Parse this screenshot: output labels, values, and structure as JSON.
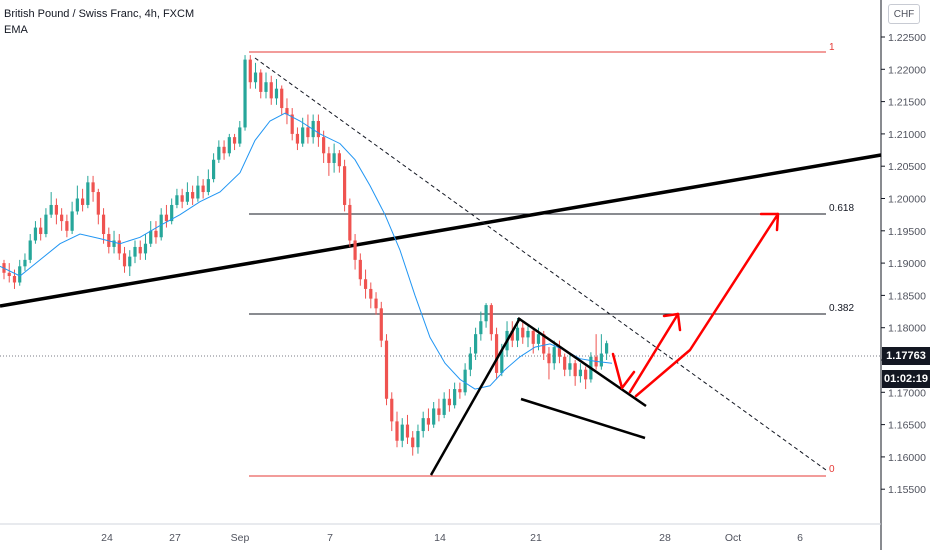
{
  "header": {
    "symbol_title": "British Pound / Swiss Franc, 4h, FXCM",
    "indicator": "EMA",
    "currency": "CHF"
  },
  "price_axis": {
    "ticks": [
      "1.22500",
      "1.22000",
      "1.21500",
      "1.21000",
      "1.20500",
      "1.20000",
      "1.19500",
      "1.19000",
      "1.18500",
      "1.18000",
      "1.17500",
      "1.17000",
      "1.16500",
      "1.16000",
      "1.15500"
    ],
    "current_price": "1.17763",
    "countdown": "01:02:19"
  },
  "time_axis": {
    "ticks": [
      "24",
      "27",
      "Sep",
      "7",
      "14",
      "21",
      "28",
      "Oct",
      "6"
    ]
  },
  "fib_labels": {
    "level_1": "1",
    "level_0618": "0.618",
    "level_0382": "0.382",
    "level_0": "0"
  },
  "colors": {
    "bull": "#26a69a",
    "bear": "#ef5350",
    "ema": "#2196f3",
    "fib_red": "#e53935",
    "arrow_red": "#ff0000",
    "axis_text": "#50535e"
  },
  "chart_data": {
    "type": "candlestick",
    "symbol": "GBPCHF",
    "timeframe": "4h",
    "ylim": [
      1.1525,
      1.2265
    ],
    "x_ticks": [
      "24",
      "27",
      "Sep",
      "7",
      "14",
      "21",
      "28",
      "Oct",
      "6"
    ],
    "current_price": 1.17763,
    "fib_levels": [
      {
        "label": "1",
        "price": 1.2222
      },
      {
        "label": "0.618",
        "price": 1.1985
      },
      {
        "label": "0.382",
        "price": 1.1839
      },
      {
        "label": "0",
        "price": 1.1602
      }
    ],
    "ema_path": [
      [
        0,
        1.1895
      ],
      [
        20,
        1.188
      ],
      [
        40,
        1.1905
      ],
      [
        60,
        1.193
      ],
      [
        80,
        1.1945
      ],
      [
        100,
        1.1938
      ],
      [
        120,
        1.193
      ],
      [
        140,
        1.194
      ],
      [
        160,
        1.1958
      ],
      [
        180,
        1.1975
      ],
      [
        200,
        1.1995
      ],
      [
        220,
        1.201
      ],
      [
        240,
        1.204
      ],
      [
        255,
        1.209
      ],
      [
        270,
        1.212
      ],
      [
        285,
        1.2132
      ],
      [
        300,
        1.212
      ],
      [
        320,
        1.21
      ],
      [
        340,
        1.2085
      ],
      [
        355,
        1.206
      ],
      [
        370,
        1.202
      ],
      [
        385,
        1.1975
      ],
      [
        400,
        1.192
      ],
      [
        415,
        1.185
      ],
      [
        430,
        1.1785
      ],
      [
        445,
        1.1745
      ],
      [
        460,
        1.172
      ],
      [
        475,
        1.1705
      ],
      [
        490,
        1.171
      ],
      [
        505,
        1.1735
      ],
      [
        520,
        1.1755
      ],
      [
        535,
        1.177
      ],
      [
        550,
        1.1775
      ],
      [
        565,
        1.1765
      ],
      [
        580,
        1.1752
      ],
      [
        595,
        1.1748
      ],
      [
        612,
        1.1745
      ]
    ],
    "candles": [
      [
        1.19,
        1.1885,
        1.1905,
        1.1875
      ],
      [
        1.1885,
        1.188,
        1.19,
        1.187
      ],
      [
        1.188,
        1.187,
        1.189,
        1.186
      ],
      [
        1.187,
        1.1895,
        1.1905,
        1.1865
      ],
      [
        1.1895,
        1.1905,
        1.1915,
        1.1888
      ],
      [
        1.1905,
        1.1935,
        1.1945,
        1.19
      ],
      [
        1.1935,
        1.1955,
        1.1965,
        1.193
      ],
      [
        1.1955,
        1.1945,
        1.197,
        1.1935
      ],
      [
        1.1945,
        1.1975,
        1.1985,
        1.194
      ],
      [
        1.1975,
        1.199,
        1.201,
        1.197
      ],
      [
        1.199,
        1.1975,
        1.2,
        1.196
      ],
      [
        1.1975,
        1.1965,
        1.1985,
        1.195
      ],
      [
        1.1965,
        1.195,
        1.1975,
        1.194
      ],
      [
        1.195,
        1.198,
        1.1995,
        1.1945
      ],
      [
        1.198,
        1.2,
        1.202,
        1.1975
      ],
      [
        1.2,
        1.199,
        1.2015,
        1.198
      ],
      [
        1.199,
        1.2025,
        1.2035,
        1.1985
      ],
      [
        1.2025,
        1.201,
        1.2035,
        1.1995
      ],
      [
        1.201,
        1.1975,
        1.2015,
        1.196
      ],
      [
        1.1975,
        1.1945,
        1.1985,
        1.193
      ],
      [
        1.1945,
        1.1925,
        1.1955,
        1.1915
      ],
      [
        1.1925,
        1.1935,
        1.195,
        1.1915
      ],
      [
        1.1935,
        1.1915,
        1.1945,
        1.1905
      ],
      [
        1.1915,
        1.1895,
        1.1925,
        1.1885
      ],
      [
        1.1895,
        1.191,
        1.192,
        1.188
      ],
      [
        1.191,
        1.1925,
        1.1935,
        1.19
      ],
      [
        1.1925,
        1.1915,
        1.1935,
        1.1905
      ],
      [
        1.1915,
        1.193,
        1.1945,
        1.1905
      ],
      [
        1.193,
        1.195,
        1.1965,
        1.1925
      ],
      [
        1.195,
        1.194,
        1.1965,
        1.193
      ],
      [
        1.194,
        1.1975,
        1.1985,
        1.1935
      ],
      [
        1.1975,
        1.1965,
        1.199,
        1.1955
      ],
      [
        1.1965,
        1.199,
        1.2,
        1.196
      ],
      [
        1.199,
        1.2005,
        1.2015,
        1.1985
      ],
      [
        1.2005,
        1.1995,
        1.2015,
        1.1985
      ],
      [
        1.1995,
        1.201,
        1.2025,
        1.199
      ],
      [
        1.201,
        1.2,
        1.202,
        1.199
      ],
      [
        1.2,
        1.202,
        1.2035,
        1.1995
      ],
      [
        1.202,
        1.201,
        1.203,
        1.2
      ],
      [
        1.201,
        1.203,
        1.2045,
        1.2005
      ],
      [
        1.203,
        1.206,
        1.207,
        1.2025
      ],
      [
        1.206,
        1.208,
        1.209,
        1.2055
      ],
      [
        1.208,
        1.207,
        1.209,
        1.206
      ],
      [
        1.207,
        1.2095,
        1.21,
        1.2065
      ],
      [
        1.2095,
        1.2085,
        1.21,
        1.2075
      ],
      [
        1.2085,
        1.211,
        1.212,
        1.208
      ],
      [
        1.211,
        1.2215,
        1.2222,
        1.2105
      ],
      [
        1.2215,
        1.218,
        1.2222,
        1.217
      ],
      [
        1.218,
        1.2195,
        1.221,
        1.217
      ],
      [
        1.2195,
        1.2165,
        1.22,
        1.2155
      ],
      [
        1.2165,
        1.218,
        1.2195,
        1.2155
      ],
      [
        1.218,
        1.2155,
        1.219,
        1.2145
      ],
      [
        1.2155,
        1.217,
        1.2185,
        1.2145
      ],
      [
        1.217,
        1.214,
        1.2175,
        1.213
      ],
      [
        1.214,
        1.213,
        1.2155,
        1.2115
      ],
      [
        1.213,
        1.21,
        1.214,
        1.209
      ],
      [
        1.21,
        1.2085,
        1.211,
        1.2075
      ],
      [
        1.2085,
        1.211,
        1.2125,
        1.208
      ],
      [
        1.211,
        1.2095,
        1.213,
        1.2085
      ],
      [
        1.2095,
        1.212,
        1.213,
        1.2085
      ],
      [
        1.212,
        1.2095,
        1.213,
        1.208
      ],
      [
        1.2095,
        1.207,
        1.2105,
        1.2055
      ],
      [
        1.207,
        1.2055,
        1.208,
        1.2035
      ],
      [
        1.2055,
        1.207,
        1.2085,
        1.204
      ],
      [
        1.207,
        1.205,
        1.2075,
        1.204
      ],
      [
        1.205,
        1.199,
        1.206,
        1.198
      ],
      [
        1.199,
        1.1935,
        1.2,
        1.1925
      ],
      [
        1.1935,
        1.1905,
        1.1945,
        1.189
      ],
      [
        1.1905,
        1.1875,
        1.1915,
        1.1865
      ],
      [
        1.1875,
        1.186,
        1.189,
        1.1845
      ],
      [
        1.186,
        1.1845,
        1.187,
        1.183
      ],
      [
        1.1845,
        1.183,
        1.1855,
        1.182
      ],
      [
        1.183,
        1.178,
        1.184,
        1.177
      ],
      [
        1.178,
        1.169,
        1.179,
        1.168
      ],
      [
        1.169,
        1.1655,
        1.17,
        1.164
      ],
      [
        1.1655,
        1.1625,
        1.167,
        1.1615
      ],
      [
        1.1625,
        1.165,
        1.166,
        1.1615
      ],
      [
        1.165,
        1.163,
        1.1665,
        1.162
      ],
      [
        1.163,
        1.1615,
        1.164,
        1.1602
      ],
      [
        1.1615,
        1.164,
        1.165,
        1.1605
      ],
      [
        1.164,
        1.166,
        1.167,
        1.163
      ],
      [
        1.166,
        1.165,
        1.1675,
        1.164
      ],
      [
        1.165,
        1.1675,
        1.1685,
        1.1645
      ],
      [
        1.1675,
        1.1665,
        1.169,
        1.1655
      ],
      [
        1.1665,
        1.169,
        1.17,
        1.166
      ],
      [
        1.169,
        1.168,
        1.1705,
        1.167
      ],
      [
        1.168,
        1.1705,
        1.1715,
        1.1675
      ],
      [
        1.1705,
        1.17,
        1.1715,
        1.169
      ],
      [
        1.17,
        1.1735,
        1.1745,
        1.1695
      ],
      [
        1.1735,
        1.176,
        1.177,
        1.1725
      ],
      [
        1.176,
        1.179,
        1.18,
        1.175
      ],
      [
        1.179,
        1.181,
        1.1825,
        1.178
      ],
      [
        1.181,
        1.1835,
        1.1838,
        1.18
      ],
      [
        1.1835,
        1.179,
        1.1838,
        1.178
      ],
      [
        1.179,
        1.173,
        1.18,
        1.172
      ],
      [
        1.173,
        1.1765,
        1.1775,
        1.1725
      ],
      [
        1.1765,
        1.1795,
        1.181,
        1.1755
      ],
      [
        1.1795,
        1.178,
        1.181,
        1.177
      ],
      [
        1.178,
        1.18,
        1.1815,
        1.177
      ],
      [
        1.18,
        1.1785,
        1.181,
        1.1775
      ],
      [
        1.1785,
        1.1795,
        1.1805,
        1.177
      ],
      [
        1.1795,
        1.1775,
        1.18,
        1.176
      ],
      [
        1.1775,
        1.179,
        1.18,
        1.1765
      ],
      [
        1.179,
        1.176,
        1.1795,
        1.175
      ],
      [
        1.176,
        1.1745,
        1.177,
        1.172
      ],
      [
        1.1745,
        1.177,
        1.178,
        1.1735
      ],
      [
        1.177,
        1.1755,
        1.178,
        1.1745
      ],
      [
        1.1755,
        1.1735,
        1.176,
        1.1725
      ],
      [
        1.1735,
        1.1745,
        1.176,
        1.1725
      ],
      [
        1.1745,
        1.1725,
        1.175,
        1.171
      ],
      [
        1.1725,
        1.1735,
        1.1745,
        1.1715
      ],
      [
        1.1735,
        1.172,
        1.174,
        1.1705
      ],
      [
        1.172,
        1.1755,
        1.1762,
        1.1715
      ],
      [
        1.1755,
        1.174,
        1.179,
        1.1735
      ],
      [
        1.174,
        1.176,
        1.179,
        1.1735
      ],
      [
        1.176,
        1.1776,
        1.178,
        1.175
      ]
    ]
  }
}
